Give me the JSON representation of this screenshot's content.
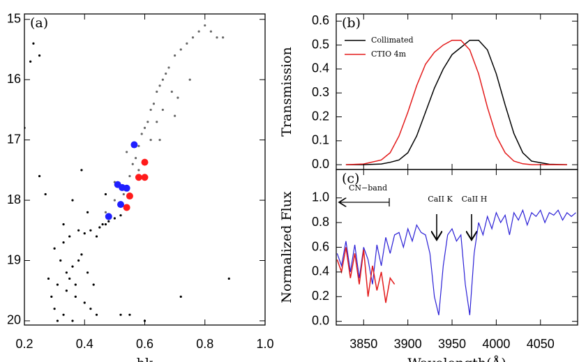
{
  "chart_data": [
    {
      "type": "scatter",
      "panel_label": "(a)",
      "x_label": "hk",
      "xlim": [
        0.2,
        1.0
      ],
      "ylim": [
        20.07,
        14.91
      ],
      "xticks": [
        0.2,
        0.4,
        0.6,
        0.8,
        {
          "value": 1.0,
          "label": "1.0"
        }
      ],
      "yticks": [
        15,
        16,
        17,
        18,
        19,
        20
      ],
      "series": [
        {
          "color": "#000000",
          "size": 1.6,
          "x": [
            0.3,
            0.33,
            0.35,
            0.38,
            0.4,
            0.42,
            0.32,
            0.36,
            0.39,
            0.41,
            0.28,
            0.31,
            0.34,
            0.37,
            0.43,
            0.45,
            0.3,
            0.33,
            0.36,
            0.4,
            0.44,
            0.29,
            0.35,
            0.38,
            0.42,
            0.31,
            0.34,
            0.37,
            0.46,
            0.48,
            0.5,
            0.52,
            0.44,
            0.47,
            0.27,
            0.23,
            0.25,
            0.22,
            0.25,
            0.52,
            0.6,
            0.72,
            0.55,
            0.88,
            0.2,
            0.36,
            0.39,
            0.33,
            0.41,
            0.47
          ],
          "values": [
            18.8,
            18.7,
            18.6,
            18.5,
            18.55,
            18.5,
            19.0,
            19.1,
            18.9,
            19.2,
            19.3,
            19.4,
            19.5,
            19.6,
            19.4,
            18.45,
            19.8,
            19.9,
            20.0,
            19.7,
            19.9,
            19.6,
            19.3,
            19.0,
            19.8,
            20.0,
            19.2,
            19.4,
            18.4,
            18.35,
            18.3,
            18.25,
            18.6,
            18.4,
            17.9,
            15.4,
            15.6,
            15.7,
            17.6,
            19.9,
            20.0,
            19.6,
            19.9,
            19.3,
            16.8,
            18.0,
            17.5,
            18.4,
            18.2,
            17.9
          ]
        },
        {
          "color": "#666666",
          "size": 1.6,
          "x": [
            0.47,
            0.5,
            0.52,
            0.53,
            0.55,
            0.56,
            0.57,
            0.58,
            0.59,
            0.6,
            0.61,
            0.62,
            0.63,
            0.64,
            0.65,
            0.66,
            0.67,
            0.68,
            0.7,
            0.72,
            0.74,
            0.76,
            0.78,
            0.8,
            0.82,
            0.84,
            0.86,
            0.55,
            0.6,
            0.65,
            0.7,
            0.75,
            0.58,
            0.62,
            0.66,
            0.71,
            0.5,
            0.54,
            0.64,
            0.69
          ],
          "values": [
            18.2,
            18.0,
            17.8,
            17.9,
            17.6,
            17.4,
            17.3,
            17.1,
            16.9,
            16.8,
            16.7,
            16.5,
            16.4,
            16.2,
            16.1,
            16.0,
            15.9,
            15.8,
            15.6,
            15.5,
            15.4,
            15.3,
            15.2,
            15.1,
            15.2,
            15.3,
            15.3,
            17.9,
            17.6,
            17.0,
            16.6,
            16.0,
            17.5,
            17.0,
            16.5,
            16.3,
            17.7,
            17.2,
            16.7,
            16.2
          ]
        },
        {
          "color": "#1f1fff",
          "size": 5,
          "x": [
            0.565,
            0.51,
            0.525,
            0.54,
            0.52,
            0.48
          ],
          "values": [
            17.08,
            17.74,
            17.79,
            17.8,
            18.07,
            18.27
          ]
        },
        {
          "color": "#ff1a1a",
          "size": 5,
          "x": [
            0.6,
            0.58,
            0.6,
            0.55,
            0.54
          ],
          "values": [
            17.37,
            17.62,
            17.62,
            17.93,
            18.12
          ]
        }
      ]
    },
    {
      "type": "line",
      "panel_label": "(b)",
      "y_label": "Transmission",
      "legend": "upper left",
      "xlim": [
        3819,
        4092
      ],
      "ylim": [
        -0.02,
        0.63
      ],
      "xticks": [
        3850,
        3900,
        3950,
        4000,
        4050
      ],
      "yticks": [
        {
          "value": 0,
          "label": "0.0"
        },
        0.1,
        0.2,
        0.3,
        0.4,
        0.5,
        0.6
      ],
      "series": [
        {
          "name": "Collimated",
          "color": "#000000",
          "x": [
            3830,
            3850,
            3870,
            3880,
            3890,
            3900,
            3910,
            3920,
            3930,
            3940,
            3950,
            3960,
            3970,
            3980,
            3990,
            4000,
            4010,
            4020,
            4030,
            4040,
            4060,
            4080
          ],
          "values": [
            0,
            0,
            0.003,
            0.01,
            0.02,
            0.05,
            0.12,
            0.22,
            0.32,
            0.4,
            0.46,
            0.49,
            0.52,
            0.52,
            0.48,
            0.38,
            0.25,
            0.13,
            0.05,
            0.015,
            0.002,
            0
          ]
        },
        {
          "name": "CTIO 4m",
          "color": "#e31a1a",
          "x": [
            3830,
            3850,
            3870,
            3880,
            3890,
            3900,
            3910,
            3920,
            3930,
            3940,
            3950,
            3960,
            3970,
            3980,
            3990,
            4000,
            4010,
            4020,
            4030,
            4040,
            4060,
            4080
          ],
          "values": [
            0,
            0.003,
            0.02,
            0.05,
            0.12,
            0.22,
            0.33,
            0.42,
            0.47,
            0.5,
            0.52,
            0.52,
            0.48,
            0.38,
            0.24,
            0.12,
            0.05,
            0.015,
            0.004,
            0,
            0,
            0
          ]
        }
      ]
    },
    {
      "type": "line",
      "panel_label": "(c)",
      "y_label": "Normalized Flux",
      "x_label": "Wavelength(Å)",
      "xlim": [
        3819,
        4092
      ],
      "ylim": [
        -0.03,
        1.23
      ],
      "xticks": [
        3850,
        3900,
        3950,
        4000,
        4050
      ],
      "yticks": [
        {
          "value": 0,
          "label": "0.0"
        },
        0.2,
        0.4,
        0.6,
        0.8,
        {
          "value": 1.0,
          "label": "1.0"
        }
      ],
      "annotations": [
        "CN−band",
        "CaII K",
        "CaII H"
      ],
      "series": [
        {
          "color": "#2a1fd6",
          "x": [
            3820,
            3825,
            3830,
            3835,
            3840,
            3845,
            3850,
            3855,
            3860,
            3865,
            3870,
            3875,
            3880,
            3885,
            3890,
            3895,
            3900,
            3905,
            3910,
            3915,
            3920,
            3925,
            3930,
            3935,
            3940,
            3945,
            3950,
            3955,
            3960,
            3965,
            3970,
            3975,
            3980,
            3985,
            3990,
            3995,
            4000,
            4005,
            4010,
            4015,
            4020,
            4025,
            4030,
            4035,
            4040,
            4045,
            4050,
            4055,
            4060,
            4065,
            4070,
            4075,
            4080,
            4085,
            4090
          ],
          "values": [
            0.55,
            0.45,
            0.65,
            0.4,
            0.62,
            0.35,
            0.6,
            0.5,
            0.3,
            0.62,
            0.45,
            0.68,
            0.55,
            0.7,
            0.72,
            0.6,
            0.75,
            0.65,
            0.78,
            0.72,
            0.7,
            0.55,
            0.2,
            0.05,
            0.45,
            0.7,
            0.75,
            0.65,
            0.7,
            0.3,
            0.05,
            0.55,
            0.8,
            0.7,
            0.85,
            0.75,
            0.88,
            0.8,
            0.86,
            0.7,
            0.88,
            0.82,
            0.9,
            0.78,
            0.88,
            0.85,
            0.9,
            0.8,
            0.88,
            0.86,
            0.9,
            0.82,
            0.88,
            0.85,
            0.88
          ]
        },
        {
          "color": "#e31a1a",
          "x": [
            3820,
            3825,
            3830,
            3835,
            3840,
            3845,
            3850,
            3855,
            3860,
            3865,
            3870,
            3875,
            3880,
            3885
          ],
          "values": [
            0.5,
            0.4,
            0.6,
            0.35,
            0.55,
            0.3,
            0.58,
            0.2,
            0.45,
            0.25,
            0.4,
            0.15,
            0.35,
            0.3
          ]
        }
      ]
    }
  ]
}
